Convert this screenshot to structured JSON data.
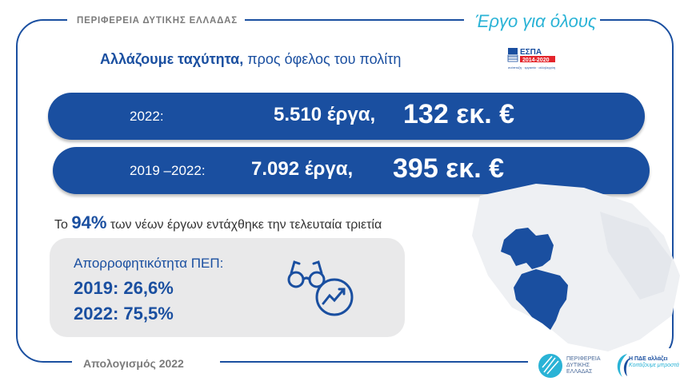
{
  "header": {
    "region": "ΠΕΡΙΦΕΡΕΙΑ ΔΥΤΙΚΗΣ ΕΛΛΑΔΑΣ",
    "slogan": "Έργο για όλους"
  },
  "headline": {
    "bold": "Αλλάζουμε ταχύτητα,",
    "rest": " προς όφελος του πολίτη"
  },
  "espa_logo": {
    "name": "ΕΣΠΑ",
    "period": "2014-2020",
    "tagline": "ανάπτυξη · εργασία · αλληλεγγύη"
  },
  "stats": [
    {
      "year": "2022:",
      "count": "5.510 έργα,",
      "amount": "132 εκ. €"
    },
    {
      "year": "2019 –2022:",
      "count": "7.092 έργα,",
      "amount": "395 εκ. €"
    }
  ],
  "share": {
    "prefix": "Το ",
    "percent": "94%",
    "suffix": " των νέων έργων εντάχθηκε την τελευταία τριετία"
  },
  "absorption": {
    "title": "Απορροφητικότητα ΠΕΠ:",
    "rows": [
      {
        "label": "2019: 26,6%"
      },
      {
        "label": "2022: 75,5%"
      }
    ]
  },
  "footer": {
    "text": "Απολογισμός 2022"
  },
  "logo_region": {
    "lines": [
      "ΠΕΡΙΦΕΡΕΙΑ",
      "ΔΥΤΙΚΗΣ",
      "ΕΛΛΑΔΑΣ"
    ]
  },
  "logo_pde": {
    "line1": "Η ΠΔΕ αλλάζει",
    "line2": "Κοιτάζουμε μπροστά"
  },
  "colors": {
    "primary": "#1a4fa0",
    "accent": "#2ab3d6",
    "grey": "#7b7b7b",
    "panel": "#e9e9ea"
  },
  "icons": {
    "glasses": "glasses-icon",
    "growth": "trend-up-icon",
    "map": "region-map-icon"
  }
}
